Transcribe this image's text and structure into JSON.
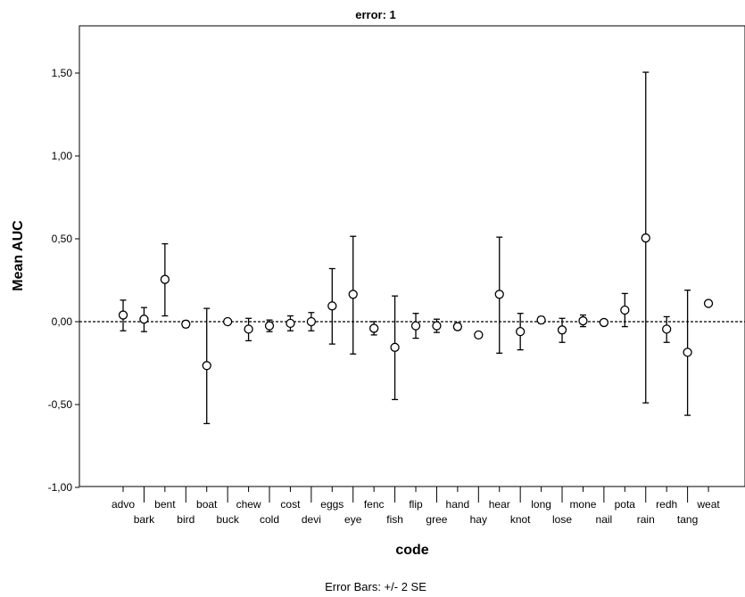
{
  "chart_data": {
    "type": "scatter",
    "title": "error: 1",
    "xlabel": "code",
    "ylabel": "Mean AUC",
    "footnote": "Error Bars: +/- 2 SE",
    "ylim": [
      -1.0,
      1.75
    ],
    "yticks": [
      -1.0,
      -0.5,
      0.0,
      0.5,
      1.0,
      1.5
    ],
    "ytick_labels": [
      "-1,00",
      "-0,50",
      "0,00",
      "0,50",
      "1,00",
      "1,50"
    ],
    "reference_line": 0.0,
    "grid": false,
    "categories": [
      "advo",
      "bark",
      "bent",
      "bird",
      "boat",
      "buck",
      "chew",
      "cold",
      "cost",
      "devi",
      "eggs",
      "eye",
      "fenc",
      "fish",
      "flip",
      "gree",
      "hand",
      "hay",
      "hear",
      "knot",
      "long",
      "lose",
      "mone",
      "nail",
      "pota",
      "rain",
      "redh",
      "tang",
      "weat"
    ],
    "series": [
      {
        "mean": [
          0.04,
          0.015,
          0.255,
          -0.015,
          -0.265,
          0.0,
          -0.045,
          -0.025,
          -0.01,
          0.0,
          0.095,
          0.165,
          -0.04,
          -0.155,
          -0.025,
          -0.025,
          -0.03,
          -0.08,
          0.165,
          -0.06,
          0.01,
          -0.05,
          0.005,
          -0.005,
          0.07,
          0.505,
          -0.045,
          -0.185,
          0.11
        ],
        "lower": [
          -0.055,
          -0.06,
          0.035,
          -0.035,
          -0.615,
          -0.01,
          -0.115,
          -0.06,
          -0.055,
          -0.055,
          -0.135,
          -0.195,
          -0.08,
          -0.47,
          -0.1,
          -0.065,
          -0.05,
          -0.095,
          -0.19,
          -0.17,
          -0.01,
          -0.125,
          -0.03,
          -0.02,
          -0.03,
          -0.49,
          -0.125,
          -0.565,
          null
        ],
        "upper": [
          0.13,
          0.085,
          0.47,
          0.005,
          0.08,
          0.01,
          0.02,
          0.01,
          0.035,
          0.055,
          0.32,
          0.515,
          0.0,
          0.155,
          0.05,
          0.015,
          -0.01,
          -0.065,
          0.51,
          0.05,
          0.03,
          0.02,
          0.04,
          0.01,
          0.17,
          1.505,
          0.03,
          0.19,
          null
        ]
      }
    ],
    "colors": {
      "marker": "#000000",
      "errorbar": "#000000",
      "reference": "#000000",
      "background": "#ffffff"
    }
  }
}
